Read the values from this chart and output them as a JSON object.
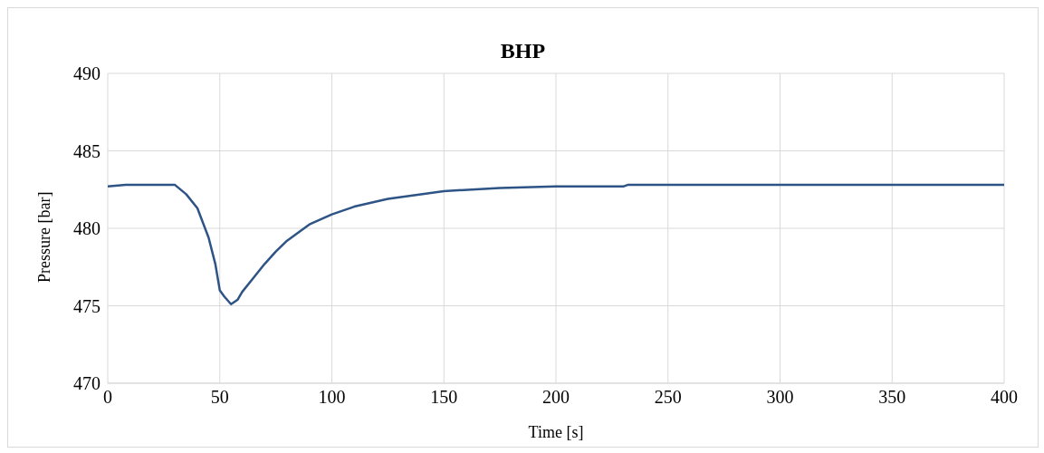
{
  "chart_data": {
    "type": "line",
    "title": "BHP",
    "xlabel": "Time [s]",
    "ylabel": "Pressure [bar]",
    "series": [
      {
        "color": "#2e5486",
        "x": [
          0,
          8,
          30,
          35,
          40,
          45,
          48,
          50,
          52,
          55,
          58,
          60,
          65,
          70,
          75,
          80,
          90,
          100,
          110,
          125,
          150,
          175,
          200,
          230,
          232,
          300,
          400
        ],
        "values": [
          482.7,
          482.8,
          482.8,
          482.2,
          481.3,
          479.4,
          477.7,
          476.0,
          475.6,
          475.1,
          475.4,
          475.9,
          476.8,
          477.7,
          478.5,
          479.2,
          480.25,
          480.9,
          481.4,
          481.9,
          482.4,
          482.6,
          482.7,
          482.7,
          482.8,
          482.8,
          482.8
        ]
      }
    ],
    "xlim": [
      0,
      400
    ],
    "xticks": [
      0,
      50,
      100,
      150,
      200,
      250,
      300,
      350,
      400
    ],
    "ylim": [
      470,
      490
    ],
    "yticks": [
      470,
      475,
      480,
      485,
      490
    ],
    "grid": true,
    "legend": false,
    "marker": "none",
    "line_style": "solid"
  }
}
